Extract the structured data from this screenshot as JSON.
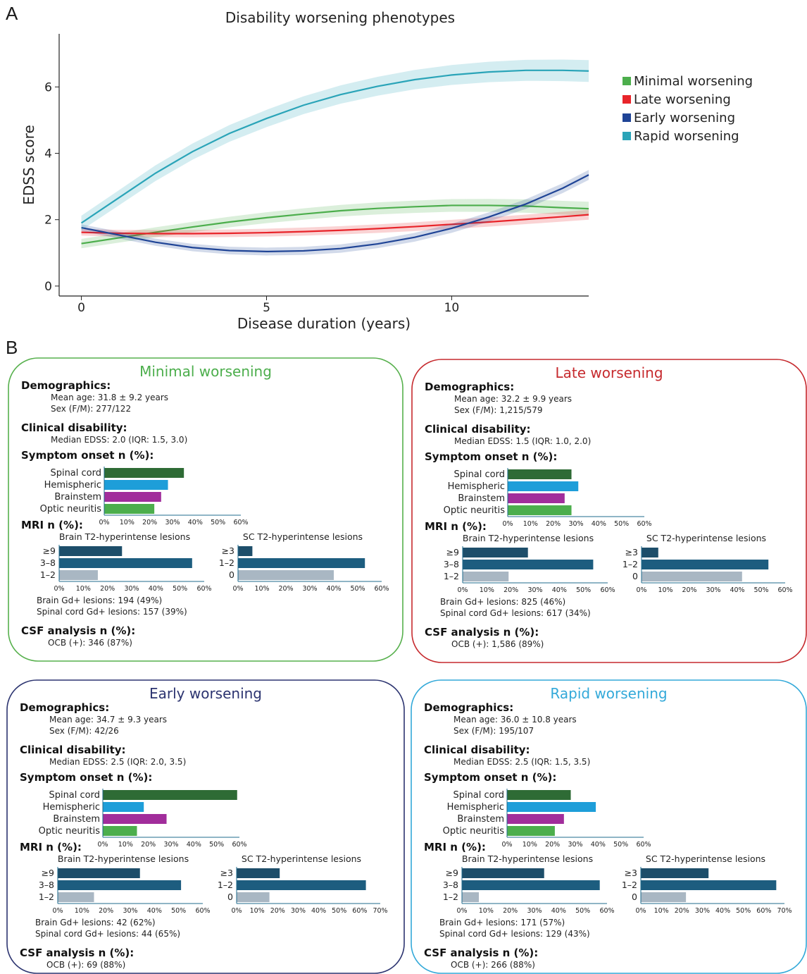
{
  "panel_a_label": "A",
  "panel_b_label": "B",
  "colors": {
    "minimal": "#4cae4c",
    "late": "#e8242a",
    "early": "#1f4496",
    "rapid": "#2aa4b8",
    "spinal": "#2e6b35",
    "hemispheric": "#1e9ed9",
    "brainstem": "#a12d9b",
    "optic": "#4cae4c",
    "mri_dark": "#1d4e6a",
    "mri_mid": "#1d5d7f",
    "mri_light": "#a9b7c3",
    "box_minimal": "#57b04d",
    "box_late": "#c62a2e",
    "box_early": "#2c3470",
    "box_rapid": "#33a9d9"
  },
  "chart_data": [
    {
      "type": "line",
      "title": "Disability worsening phenotypes",
      "xlabel": "Disease duration (years)",
      "ylabel": "EDSS score",
      "xlim": [
        -0.6,
        13.7
      ],
      "ylim": [
        -0.3,
        7.6
      ],
      "xticks": [
        0,
        5,
        10
      ],
      "yticks": [
        0,
        2,
        4,
        6
      ],
      "grid": false,
      "legend": "right",
      "series": [
        {
          "name": "Minimal worsening",
          "key": "minimal",
          "x": [
            0,
            1,
            2,
            3,
            4,
            5,
            6,
            7,
            8,
            9,
            10,
            11,
            12,
            13,
            13.7
          ],
          "y": [
            1.28,
            1.45,
            1.62,
            1.78,
            1.93,
            2.06,
            2.17,
            2.27,
            2.34,
            2.39,
            2.43,
            2.43,
            2.41,
            2.36,
            2.33
          ]
        },
        {
          "name": "Late worsening",
          "key": "late",
          "x": [
            0,
            1,
            2,
            3,
            4,
            5,
            6,
            7,
            8,
            9,
            10,
            11,
            12,
            13,
            13.7
          ],
          "y": [
            1.62,
            1.59,
            1.58,
            1.58,
            1.59,
            1.61,
            1.64,
            1.68,
            1.73,
            1.79,
            1.86,
            1.93,
            2.01,
            2.09,
            2.15
          ]
        },
        {
          "name": "Early worsening",
          "key": "early",
          "x": [
            0,
            1,
            2,
            3,
            4,
            5,
            6,
            7,
            8,
            9,
            10,
            11,
            12,
            13,
            13.7
          ],
          "y": [
            1.76,
            1.54,
            1.32,
            1.16,
            1.07,
            1.04,
            1.06,
            1.13,
            1.27,
            1.47,
            1.74,
            2.08,
            2.47,
            2.95,
            3.35
          ]
        },
        {
          "name": "Rapid worsening",
          "key": "rapid",
          "x": [
            0,
            1,
            2,
            3,
            4,
            5,
            6,
            7,
            8,
            9,
            10,
            11,
            12,
            13,
            13.7
          ],
          "y": [
            1.9,
            2.65,
            3.4,
            4.05,
            4.6,
            5.05,
            5.45,
            5.77,
            6.02,
            6.22,
            6.36,
            6.45,
            6.5,
            6.5,
            6.48
          ]
        }
      ]
    },
    {
      "type": "bar",
      "group": "Minimal worsening",
      "symptom_onset": {
        "categories": [
          "Spinal cord",
          "Hemispheric",
          "Brainstem",
          "Optic neuritis"
        ],
        "values": [
          35,
          28,
          25,
          22
        ]
      },
      "brain_t2": {
        "categories": [
          "≥9",
          "3–8",
          "1–2"
        ],
        "values": [
          26,
          55,
          16
        ]
      },
      "sc_t2": {
        "categories": [
          "≥3",
          "1–2",
          "0"
        ],
        "values": [
          6,
          53,
          40
        ]
      }
    },
    {
      "type": "bar",
      "group": "Late worsening",
      "symptom_onset": {
        "categories": [
          "Spinal cord",
          "Hemispheric",
          "Brainstem",
          "Optic neuritis"
        ],
        "values": [
          28,
          31,
          25,
          28
        ]
      },
      "brain_t2": {
        "categories": [
          "≥9",
          "3–8",
          "1–2"
        ],
        "values": [
          27,
          54,
          19
        ]
      },
      "sc_t2": {
        "categories": [
          "≥3",
          "1–2",
          "0"
        ],
        "values": [
          7,
          53,
          42
        ]
      }
    },
    {
      "type": "bar",
      "group": "Early worsening",
      "symptom_onset": {
        "categories": [
          "Spinal cord",
          "Hemispheric",
          "Brainstem",
          "Optic neuritis"
        ],
        "values": [
          59,
          18,
          28,
          15
        ]
      },
      "brain_t2": {
        "categories": [
          "≥9",
          "3–8",
          "1–2"
        ],
        "values": [
          34,
          51,
          15
        ]
      },
      "sc_t2": {
        "categories": [
          "≥3",
          "1–2",
          "0"
        ],
        "values": [
          21,
          63,
          16
        ]
      }
    },
    {
      "type": "bar",
      "group": "Rapid worsening",
      "symptom_onset": {
        "categories": [
          "Spinal cord",
          "Hemispheric",
          "Brainstem",
          "Optic neuritis"
        ],
        "values": [
          28,
          39,
          25,
          21
        ]
      },
      "brain_t2": {
        "categories": [
          "≥9",
          "3–8",
          "1–2"
        ],
        "values": [
          34,
          57,
          7
        ]
      },
      "sc_t2": {
        "categories": [
          "≥3",
          "1–2",
          "0"
        ],
        "values": [
          33,
          66,
          22
        ]
      }
    }
  ],
  "phenotypes": [
    {
      "key": "minimal",
      "title": "Minimal worsening",
      "demographics_label": "Demographics:",
      "mean_age": "Mean age: 31.8 ± 9.2 years",
      "sex": "Sex (F/M): 277/122",
      "clinical_label": "Clinical disability:",
      "edss": "Median EDSS: 2.0 (IQR: 1.5, 3.0)",
      "symptom_label": "Symptom onset n (%):",
      "symptom_ticks": [
        "0%",
        "10%",
        "20%",
        "30%",
        "40%",
        "50%",
        "60%"
      ],
      "mri_label": "MRI n (%):",
      "brain_t2_title": "Brain T2-hyperintense lesions",
      "brain_ticks": [
        "0%",
        "10%",
        "20%",
        "30%",
        "40%",
        "50%",
        "60%"
      ],
      "sc_t2_title": "SC T2-hyperintense lesions",
      "sc_ticks": [
        "0%",
        "10%",
        "20%",
        "30%",
        "40%",
        "50%",
        "60%"
      ],
      "brain_gd": "Brain Gd+ lesions: 194 (49%)",
      "sc_gd": "Spinal cord Gd+ lesions: 157 (39%)",
      "csf_label": "CSF analysis n (%):",
      "ocb": "OCB (+): 346 (87%)"
    },
    {
      "key": "late",
      "title": "Late worsening",
      "demographics_label": "Demographics:",
      "mean_age": "Mean age: 32.2 ± 9.9 years",
      "sex": "Sex (F/M): 1,215/579",
      "clinical_label": "Clinical disability:",
      "edss": "Median EDSS: 1.5 (IQR: 1.0, 2.0)",
      "symptom_label": "Symptom onset n (%):",
      "symptom_ticks": [
        "0%",
        "10%",
        "20%",
        "30%",
        "40%",
        "50%",
        "60%"
      ],
      "mri_label": "MRI n (%):",
      "brain_t2_title": "Brain T2-hyperintense lesions",
      "brain_ticks": [
        "0%",
        "10%",
        "20%",
        "30%",
        "40%",
        "50%",
        "60%"
      ],
      "sc_t2_title": "SC T2-hyperintense lesions",
      "sc_ticks": [
        "0%",
        "10%",
        "20%",
        "30%",
        "40%",
        "50%",
        "60%"
      ],
      "brain_gd": "Brain Gd+ lesions: 825 (46%)",
      "sc_gd": "Spinal cord Gd+ lesions: 617 (34%)",
      "csf_label": "CSF analysis n (%):",
      "ocb": "OCB (+): 1,586 (89%)"
    },
    {
      "key": "early",
      "title": "Early worsening",
      "demographics_label": "Demographics:",
      "mean_age": "Mean age: 34.7 ± 9.3 years",
      "sex": "Sex (F/M): 42/26",
      "clinical_label": "Clinical disability:",
      "edss": "Median EDSS: 2.5 (IQR: 2.0, 3.5)",
      "symptom_label": "Symptom onset n (%):",
      "symptom_ticks": [
        "0%",
        "10%",
        "20%",
        "30%",
        "40%",
        "50%",
        "60%"
      ],
      "mri_label": "MRI n (%):",
      "brain_t2_title": "Brain T2-hyperintense lesions",
      "brain_ticks": [
        "0%",
        "10%",
        "20%",
        "30%",
        "40%",
        "50%",
        "60%"
      ],
      "sc_t2_title": "SC T2-hyperintense lesions",
      "sc_ticks": [
        "0%",
        "10%",
        "20%",
        "30%",
        "40%",
        "50%",
        "60%",
        "70%"
      ],
      "brain_gd": "Brain Gd+ lesions: 42 (62%)",
      "sc_gd": "Spinal cord Gd+ lesions: 44 (65%)",
      "csf_label": "CSF analysis n (%):",
      "ocb": "OCB (+): 69 (88%)"
    },
    {
      "key": "rapid",
      "title": "Rapid worsening",
      "demographics_label": "Demographics:",
      "mean_age": "Mean age: 36.0 ± 10.8 years",
      "sex": "Sex (F/M): 195/107",
      "clinical_label": "Clinical disability:",
      "edss": "Median EDSS: 2.5 (IQR: 1.5, 3.5)",
      "symptom_label": "Symptom onset n (%):",
      "symptom_ticks": [
        "0%",
        "10%",
        "20%",
        "30%",
        "40%",
        "50%",
        "60%"
      ],
      "mri_label": "MRI n (%):",
      "brain_t2_title": "Brain T2-hyperintense lesions",
      "brain_ticks": [
        "0%",
        "10%",
        "20%",
        "30%",
        "40%",
        "50%",
        "60%"
      ],
      "sc_t2_title": "SC T2-hyperintense lesions",
      "sc_ticks": [
        "0%",
        "10%",
        "20%",
        "30%",
        "40%",
        "50%",
        "60%",
        "70%"
      ],
      "brain_gd": "Brain Gd+ lesions: 171 (57%)",
      "sc_gd": "Spinal cord Gd+ lesions: 129 (43%)",
      "csf_label": "CSF analysis n (%):",
      "ocb": "OCB (+): 266 (88%)"
    }
  ]
}
